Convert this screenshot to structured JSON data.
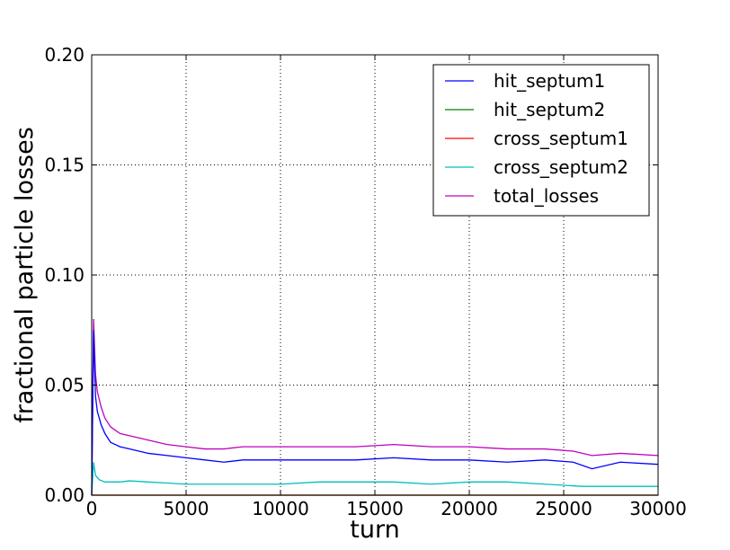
{
  "chart_data": {
    "type": "line",
    "xlabel": "turn",
    "ylabel": "fractional particle losses",
    "xlim": [
      0,
      30000
    ],
    "ylim": [
      0.0,
      0.2
    ],
    "xticks": [
      0,
      5000,
      10000,
      15000,
      20000,
      25000,
      30000
    ],
    "xtick_labels": [
      "0",
      "5000",
      "10000",
      "15000",
      "20000",
      "25000",
      "30000"
    ],
    "yticks": [
      0.0,
      0.05,
      0.1,
      0.15,
      0.2
    ],
    "ytick_labels": [
      "0.00",
      "0.05",
      "0.10",
      "0.15",
      "0.20"
    ],
    "grid": true,
    "legend_position": "top-right",
    "series": [
      {
        "name": "hit_septum1",
        "color": "#0000ff",
        "x": [
          0,
          100,
          200,
          300,
          500,
          700,
          1000,
          1500,
          2000,
          2500,
          3000,
          4000,
          5000,
          6000,
          7000,
          8000,
          9000,
          10000,
          12000,
          14000,
          16000,
          18000,
          20000,
          22000,
          24000,
          25500,
          26500,
          28000,
          30000
        ],
        "y": [
          0.0,
          0.075,
          0.045,
          0.038,
          0.032,
          0.028,
          0.024,
          0.022,
          0.021,
          0.02,
          0.019,
          0.018,
          0.017,
          0.016,
          0.015,
          0.016,
          0.016,
          0.016,
          0.016,
          0.016,
          0.017,
          0.016,
          0.016,
          0.015,
          0.016,
          0.015,
          0.012,
          0.015,
          0.014
        ]
      },
      {
        "name": "hit_septum2",
        "color": "#008000",
        "x": [
          0,
          30000
        ],
        "y": [
          0.0,
          0.0
        ]
      },
      {
        "name": "cross_septum1",
        "color": "#ff0000",
        "x": [
          0,
          30000
        ],
        "y": [
          0.0,
          0.0
        ]
      },
      {
        "name": "cross_septum2",
        "color": "#00bfbf",
        "x": [
          0,
          100,
          200,
          400,
          700,
          1000,
          1500,
          2000,
          3000,
          4000,
          5000,
          6000,
          7000,
          8000,
          10000,
          12000,
          14000,
          16000,
          18000,
          20000,
          22000,
          24000,
          26000,
          28000,
          30000
        ],
        "y": [
          0.0,
          0.015,
          0.009,
          0.007,
          0.006,
          0.006,
          0.006,
          0.0065,
          0.006,
          0.0055,
          0.005,
          0.005,
          0.005,
          0.005,
          0.005,
          0.006,
          0.006,
          0.006,
          0.005,
          0.006,
          0.006,
          0.005,
          0.004,
          0.004,
          0.004
        ]
      },
      {
        "name": "total_losses",
        "color": "#bf00bf",
        "x": [
          0,
          100,
          200,
          300,
          500,
          700,
          1000,
          1500,
          2000,
          2500,
          3000,
          4000,
          5000,
          6000,
          7000,
          8000,
          9000,
          10000,
          12000,
          14000,
          16000,
          18000,
          20000,
          22000,
          24000,
          25500,
          26500,
          28000,
          30000
        ],
        "y": [
          0.0,
          0.08,
          0.055,
          0.047,
          0.04,
          0.035,
          0.031,
          0.028,
          0.027,
          0.026,
          0.025,
          0.023,
          0.022,
          0.021,
          0.021,
          0.022,
          0.022,
          0.022,
          0.022,
          0.022,
          0.023,
          0.022,
          0.022,
          0.021,
          0.021,
          0.02,
          0.018,
          0.019,
          0.018
        ]
      }
    ]
  }
}
